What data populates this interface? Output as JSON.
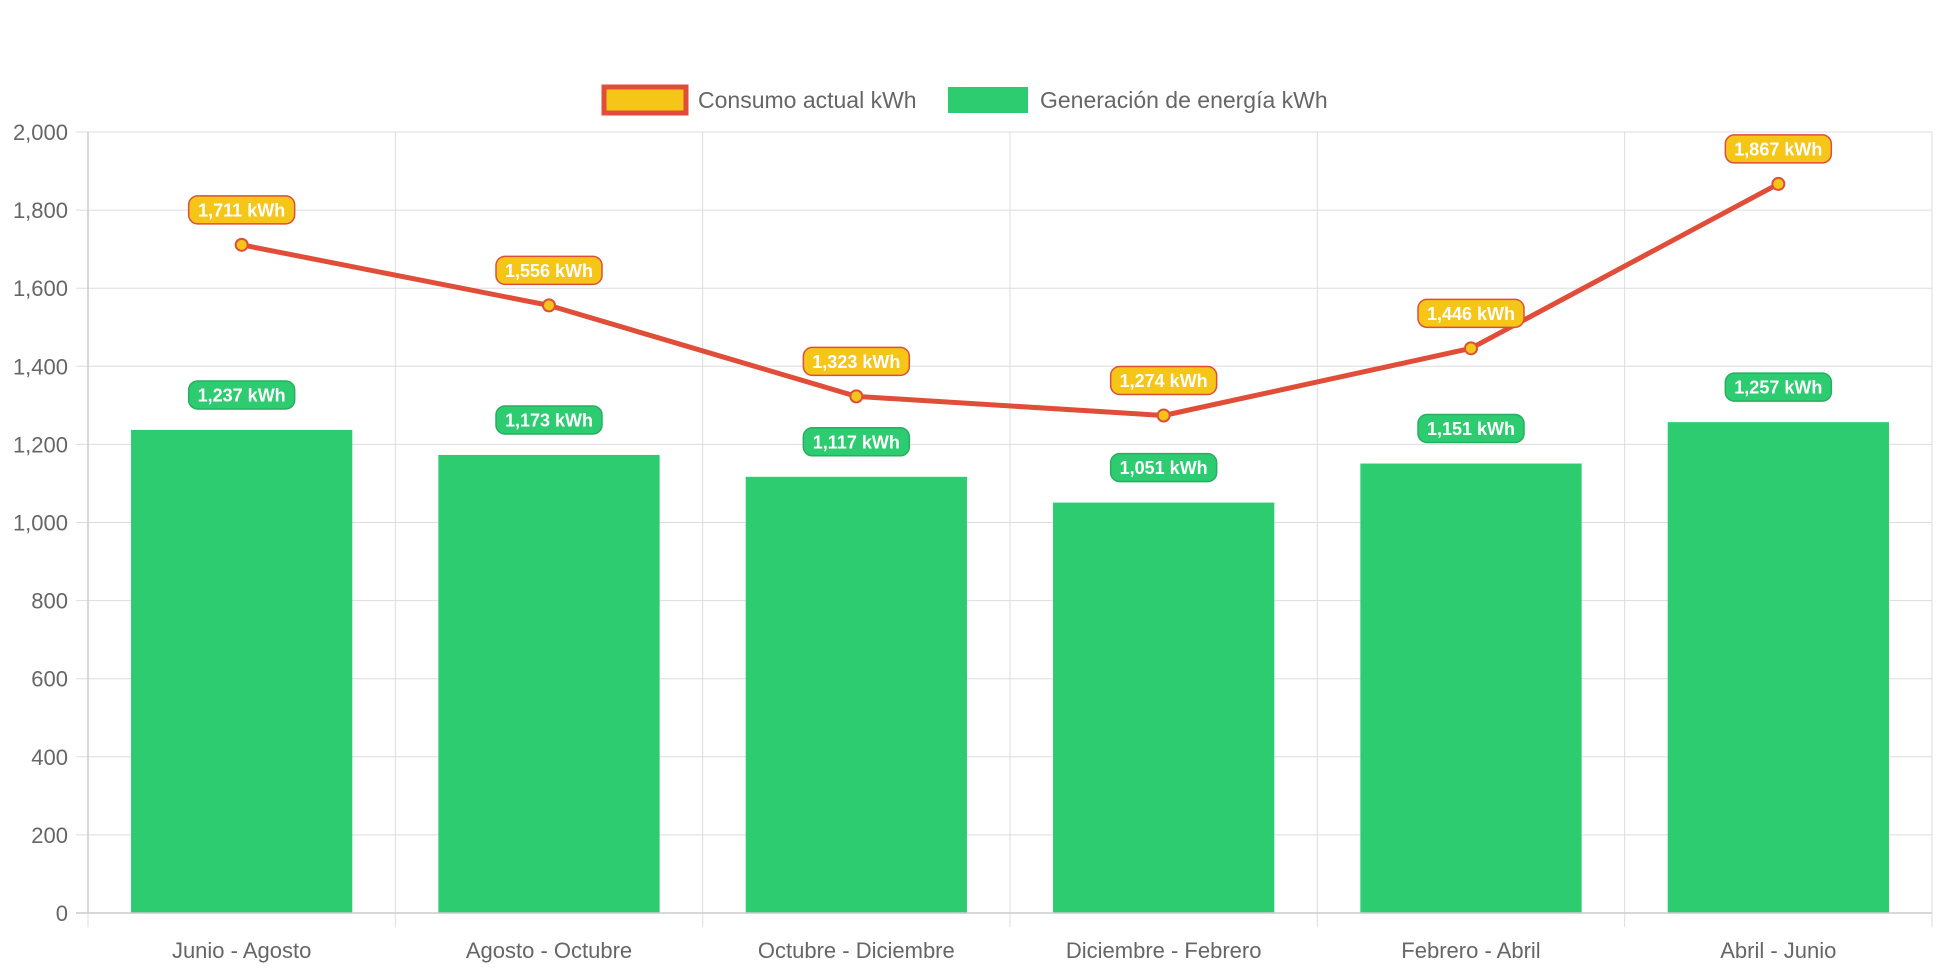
{
  "chart_data": {
    "type": "bar",
    "categories": [
      "Junio - Agosto",
      "Agosto - Octubre",
      "Octubre - Diciembre",
      "Diciembre - Febrero",
      "Febrero - Abril",
      "Abril - Junio"
    ],
    "series": [
      {
        "name": "Consumo actual kWh",
        "type": "line",
        "values": [
          1711,
          1556,
          1323,
          1274,
          1446,
          1867
        ],
        "labels": [
          "1,711 kWh",
          "1,556 kWh",
          "1,323 kWh",
          "1,274 kWh",
          "1,446 kWh",
          "1,867 kWh"
        ],
        "line_color": "#e04e39",
        "fill_color": "#f5c518"
      },
      {
        "name": "Generación de energía kWh",
        "type": "bar",
        "values": [
          1237,
          1173,
          1117,
          1051,
          1151,
          1257
        ],
        "labels": [
          "1,237 kWh",
          "1,173 kWh",
          "1,117 kWh",
          "1,051 kWh",
          "1,151 kWh",
          "1,257 kWh"
        ],
        "color": "#2ecc71",
        "label_border_color": "#27ae60"
      }
    ],
    "ylim": [
      0,
      2000
    ],
    "y_ticks": [
      "0",
      "200",
      "400",
      "600",
      "800",
      "1,000",
      "1,200",
      "1,400",
      "1,600",
      "1,800",
      "2,000"
    ],
    "y_tick_values": [
      0,
      200,
      400,
      600,
      800,
      1000,
      1200,
      1400,
      1600,
      1800,
      2000
    ],
    "grid": true,
    "legend_position": "top-center",
    "grid_color": "#dddddd",
    "axis_text_color": "#666666"
  }
}
